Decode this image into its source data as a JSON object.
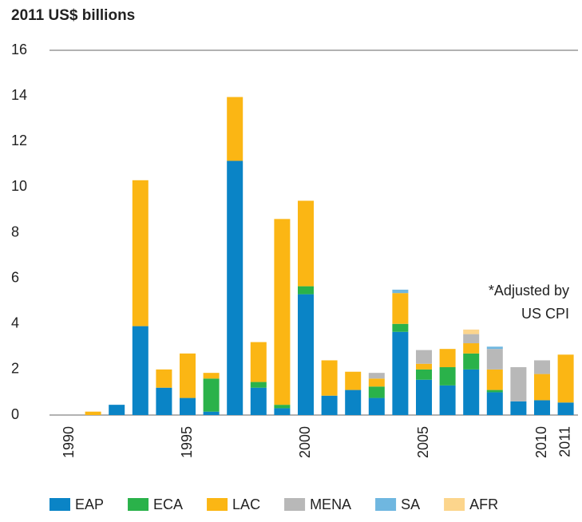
{
  "chart_data": {
    "type": "stacked_bar",
    "title": "2011 US$ billions",
    "annotation": [
      "*Adjusted by",
      "US  CPI"
    ],
    "categories": [
      "1990",
      null,
      null,
      null,
      null,
      "1995",
      null,
      null,
      null,
      null,
      "2000",
      null,
      null,
      null,
      null,
      "2005",
      null,
      null,
      null,
      null,
      "2010",
      "2011"
    ],
    "series": [
      {
        "name": "EAP",
        "color": "#0a84c6",
        "values": [
          0,
          0,
          0.45,
          3.9,
          1.2,
          0.75,
          0.15,
          11.15,
          1.2,
          0.3,
          5.3,
          0.85,
          1.1,
          0.75,
          3.65,
          1.55,
          1.3,
          2.0,
          1.0,
          0.6,
          0.65,
          0.55
        ]
      },
      {
        "name": "ECA",
        "color": "#2ab24a",
        "values": [
          0,
          0,
          0,
          0,
          0,
          0,
          1.45,
          0,
          0.25,
          0.15,
          0.35,
          0,
          0,
          0.5,
          0.35,
          0.45,
          0.8,
          0.7,
          0.1,
          0,
          0,
          0
        ]
      },
      {
        "name": "LAC",
        "color": "#fbb614",
        "values": [
          0,
          0.15,
          0,
          6.4,
          0.8,
          1.95,
          0.25,
          2.8,
          1.75,
          8.15,
          3.75,
          1.55,
          0.8,
          0.35,
          1.35,
          0.25,
          0.8,
          0.45,
          0.9,
          0,
          1.15,
          2.1
        ]
      },
      {
        "name": "MENA",
        "color": "#b8b8b8",
        "values": [
          0,
          0,
          0,
          0,
          0,
          0,
          0,
          0,
          0,
          0,
          0,
          0,
          0,
          0.25,
          0,
          0.6,
          0,
          0.4,
          0.9,
          1.5,
          0.6,
          0
        ]
      },
      {
        "name": "SA",
        "color": "#6fb7e0",
        "values": [
          0,
          0,
          0,
          0,
          0,
          0,
          0,
          0,
          0,
          0,
          0,
          0,
          0,
          0,
          0.15,
          0,
          0,
          0,
          0.1,
          0,
          0,
          0
        ]
      },
      {
        "name": "AFR",
        "color": "#fcd58c",
        "values": [
          0,
          0,
          0,
          0,
          0,
          0,
          0,
          0,
          0,
          0,
          0,
          0,
          0,
          0,
          0,
          0,
          0,
          0.2,
          0,
          0,
          0,
          0
        ]
      }
    ],
    "ylim": [
      0,
      16
    ],
    "yticks": [
      0,
      2,
      4,
      6,
      8,
      10,
      12,
      14,
      16
    ],
    "grid": false
  }
}
